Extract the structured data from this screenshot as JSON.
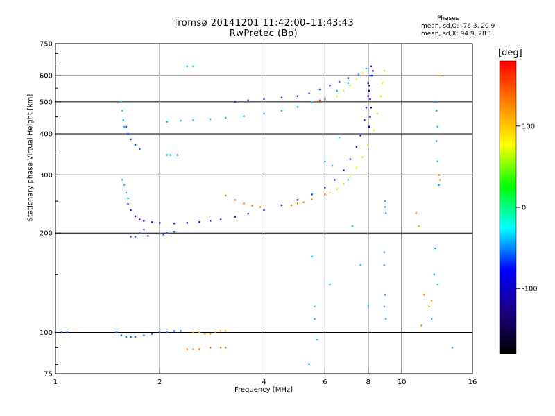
{
  "title": "Tromsø 20141201 11:42:00–11:43:43",
  "subtitle": "RwPretec (Bp)",
  "phases": {
    "title": "Phases",
    "o_line": "mean, sd,O: -76.3, 20.9",
    "x_line": "mean, sd,X:  94.9, 28.1"
  },
  "colorbar": {
    "unit": "[deg]",
    "ticks": [
      "100",
      "0",
      "-100"
    ],
    "tick_values": [
      100,
      0,
      -100
    ],
    "range": [
      -180,
      180
    ],
    "colors": [
      "#ff0000",
      "#ff8000",
      "#ffff00",
      "#00ff00",
      "#00ffff",
      "#0000ff",
      "#1a0080",
      "#000000"
    ]
  },
  "chart_data": {
    "type": "scatter",
    "title": "Tromsø 20141201 11:42:00–11:43:43",
    "subtitle": "RwPretec (Bp)",
    "xlabel": "Frequency [MHz]",
    "ylabel": "Stationary phase Virtual Height [km]",
    "xscale": "log2",
    "yscale": "log",
    "xlim": [
      1,
      16
    ],
    "ylim": [
      75,
      750
    ],
    "x_ticks": [
      1,
      2,
      4,
      6,
      8,
      10,
      16
    ],
    "x_tick_labels": [
      "1",
      "2",
      "4",
      "6",
      "8",
      "10",
      "16"
    ],
    "y_ticks": [
      75,
      100,
      200,
      300,
      400,
      500,
      600,
      750
    ],
    "y_tick_labels": [
      "75",
      "100",
      "200",
      "300",
      "400",
      "500",
      "600",
      "750"
    ],
    "grid": true,
    "color_meaning": "phase in degrees",
    "series": [
      {
        "color": "#2020ff",
        "points": [
          [
            1.62,
            245
          ],
          [
            1.65,
            235
          ],
          [
            1.7,
            225
          ],
          [
            1.75,
            220
          ],
          [
            1.8,
            218
          ],
          [
            1.9,
            216
          ],
          [
            2.0,
            215
          ],
          [
            2.2,
            214
          ],
          [
            2.4,
            215
          ],
          [
            2.6,
            216
          ],
          [
            2.8,
            218
          ],
          [
            3.0,
            220
          ],
          [
            3.3,
            224
          ],
          [
            3.6,
            229
          ],
          [
            4.0,
            235
          ],
          [
            4.5,
            243
          ],
          [
            5.0,
            252
          ],
          [
            5.5,
            262
          ],
          [
            6.0,
            275
          ],
          [
            6.4,
            290
          ],
          [
            6.8,
            310
          ],
          [
            7.1,
            335
          ],
          [
            7.4,
            365
          ],
          [
            7.6,
            395
          ],
          [
            7.8,
            440
          ],
          [
            7.9,
            480
          ],
          [
            8.0,
            520
          ],
          [
            8.05,
            560
          ],
          [
            8.1,
            600
          ],
          [
            8.15,
            640
          ]
        ]
      },
      {
        "color": "#ff8000",
        "points": [
          [
            3.1,
            260
          ],
          [
            3.3,
            252
          ],
          [
            3.5,
            246
          ],
          [
            3.7,
            242
          ],
          [
            3.9,
            240
          ],
          [
            4.8,
            243
          ],
          [
            5.0,
            246
          ],
          [
            5.2,
            248
          ],
          [
            5.5,
            253
          ],
          [
            6.0,
            262
          ]
        ]
      },
      {
        "color": "#c8ff00",
        "points": [
          [
            6.2,
            265
          ],
          [
            6.5,
            272
          ],
          [
            6.8,
            282
          ],
          [
            7.1,
            296
          ],
          [
            7.4,
            315
          ],
          [
            7.7,
            340
          ],
          [
            8.0,
            370
          ],
          [
            8.3,
            410
          ],
          [
            8.5,
            460
          ],
          [
            8.7,
            520
          ],
          [
            8.8,
            570
          ],
          [
            8.9,
            620
          ]
        ]
      },
      {
        "color": "#00ccff",
        "points": [
          [
            2.1,
            435
          ],
          [
            2.3,
            438
          ],
          [
            2.5,
            440
          ],
          [
            2.8,
            443
          ],
          [
            3.1,
            447
          ],
          [
            3.5,
            452
          ],
          [
            4.0,
            460
          ],
          [
            4.5,
            470
          ],
          [
            5.0,
            482
          ],
          [
            5.5,
            498
          ],
          [
            6.0,
            515
          ],
          [
            6.5,
            540
          ],
          [
            7.0,
            570
          ],
          [
            7.5,
            605
          ],
          [
            7.9,
            630
          ]
        ]
      },
      {
        "color": "#1040e0",
        "points": [
          [
            3.3,
            500
          ],
          [
            3.6,
            505
          ],
          [
            4.0,
            510
          ],
          [
            4.5,
            515
          ],
          [
            5.0,
            520
          ],
          [
            5.4,
            530
          ],
          [
            5.8,
            545
          ],
          [
            6.2,
            560
          ],
          [
            6.6,
            575
          ],
          [
            7.0,
            590
          ]
        ]
      },
      {
        "color": "#e0ff00",
        "points": [
          [
            6.5,
            520
          ],
          [
            6.8,
            540
          ],
          [
            7.1,
            560
          ],
          [
            7.4,
            585
          ],
          [
            7.7,
            610
          ]
        ]
      },
      {
        "color": "#ff6000",
        "points": [
          [
            5.6,
            500
          ],
          [
            5.8,
            505
          ],
          [
            6.0,
            508
          ]
        ]
      },
      {
        "color": "#00ccff",
        "points": [
          [
            1.55,
            500
          ],
          [
            1.56,
            470
          ],
          [
            1.57,
            440
          ],
          [
            1.58,
            420
          ]
        ]
      },
      {
        "color": "#0050ff",
        "points": [
          [
            1.6,
            420
          ],
          [
            1.62,
            400
          ],
          [
            1.65,
            385
          ],
          [
            1.7,
            370
          ],
          [
            1.75,
            360
          ]
        ]
      },
      {
        "color": "#00c0ff",
        "points": [
          [
            1.56,
            290
          ],
          [
            1.58,
            280
          ],
          [
            1.6,
            265
          ],
          [
            1.62,
            255
          ]
        ]
      },
      {
        "color": "#2060ff",
        "points": [
          [
            1.65,
            195
          ],
          [
            1.7,
            195
          ],
          [
            1.75,
            200
          ],
          [
            1.8,
            205
          ],
          [
            1.85,
            196
          ],
          [
            2.05,
            198
          ],
          [
            2.1,
            200
          ],
          [
            2.2,
            202
          ]
        ]
      },
      {
        "color": "#0070ff",
        "points": [
          [
            1.0,
            100
          ],
          [
            1.04,
            100
          ],
          [
            1.08,
            100
          ],
          [
            1.5,
            100
          ],
          [
            1.55,
            98
          ],
          [
            1.6,
            97
          ],
          [
            1.65,
            97
          ],
          [
            1.7,
            97
          ],
          [
            1.8,
            98
          ],
          [
            1.9,
            99
          ],
          [
            2.0,
            100
          ],
          [
            2.1,
            100
          ],
          [
            2.2,
            101
          ],
          [
            2.3,
            101
          ]
        ]
      },
      {
        "color": "#ffa000",
        "points": [
          [
            2.5,
            100
          ],
          [
            2.6,
            100
          ],
          [
            2.7,
            99
          ],
          [
            2.8,
            99
          ],
          [
            2.9,
            100
          ],
          [
            3.0,
            101
          ],
          [
            3.1,
            101
          ]
        ]
      },
      {
        "color": "#ff7000",
        "points": [
          [
            2.4,
            89
          ],
          [
            2.5,
            89
          ],
          [
            2.6,
            89
          ],
          [
            2.8,
            90
          ],
          [
            3.0,
            90
          ],
          [
            3.1,
            90
          ]
        ]
      },
      {
        "color": "#00c0ff",
        "points": [
          [
            2.1,
            345
          ],
          [
            2.15,
            345
          ],
          [
            2.25,
            345
          ],
          [
            2.4,
            640
          ],
          [
            2.5,
            640
          ]
        ]
      },
      {
        "color": "#0000c0",
        "points": [
          [
            8.0,
            570
          ],
          [
            8.05,
            540
          ],
          [
            8.1,
            510
          ],
          [
            8.15,
            480
          ],
          [
            8.1,
            450
          ],
          [
            8.05,
            420
          ],
          [
            8.2,
            600
          ],
          [
            8.25,
            620
          ]
        ]
      },
      {
        "color": "#40a0ff",
        "points": [
          [
            8.95,
            250
          ],
          [
            8.95,
            240
          ],
          [
            9.0,
            230
          ],
          [
            8.9,
            175
          ],
          [
            8.9,
            160
          ],
          [
            8.95,
            130
          ],
          [
            8.9,
            120
          ],
          [
            9.0,
            110
          ]
        ]
      },
      {
        "color": "#00a0ff",
        "points": [
          [
            12.5,
            500
          ],
          [
            12.6,
            470
          ],
          [
            12.7,
            420
          ],
          [
            12.6,
            380
          ],
          [
            12.7,
            330
          ],
          [
            12.8,
            280
          ],
          [
            12.5,
            180
          ],
          [
            12.4,
            150
          ],
          [
            12.7,
            140
          ],
          [
            12.2,
            110
          ]
        ]
      },
      {
        "color": "#ff9000",
        "points": [
          [
            12.9,
            290
          ],
          [
            12.8,
            300
          ],
          [
            11.0,
            230
          ],
          [
            11.2,
            210
          ],
          [
            11.4,
            105
          ],
          [
            12.0,
            120
          ],
          [
            12.2,
            125
          ],
          [
            11.6,
            130
          ],
          [
            12.9,
            600
          ]
        ]
      },
      {
        "color": "#20c0ff",
        "points": [
          [
            5.5,
            170
          ],
          [
            5.6,
            120
          ],
          [
            5.6,
            110
          ],
          [
            5.7,
            95
          ],
          [
            5.4,
            80
          ],
          [
            6.2,
            140
          ],
          [
            6.3,
            320
          ],
          [
            6.0,
            330
          ],
          [
            6.6,
            390
          ],
          [
            7.0,
            290
          ],
          [
            7.2,
            210
          ],
          [
            7.6,
            160
          ],
          [
            8.0,
            120
          ],
          [
            14.0,
            90
          ]
        ]
      }
    ]
  }
}
